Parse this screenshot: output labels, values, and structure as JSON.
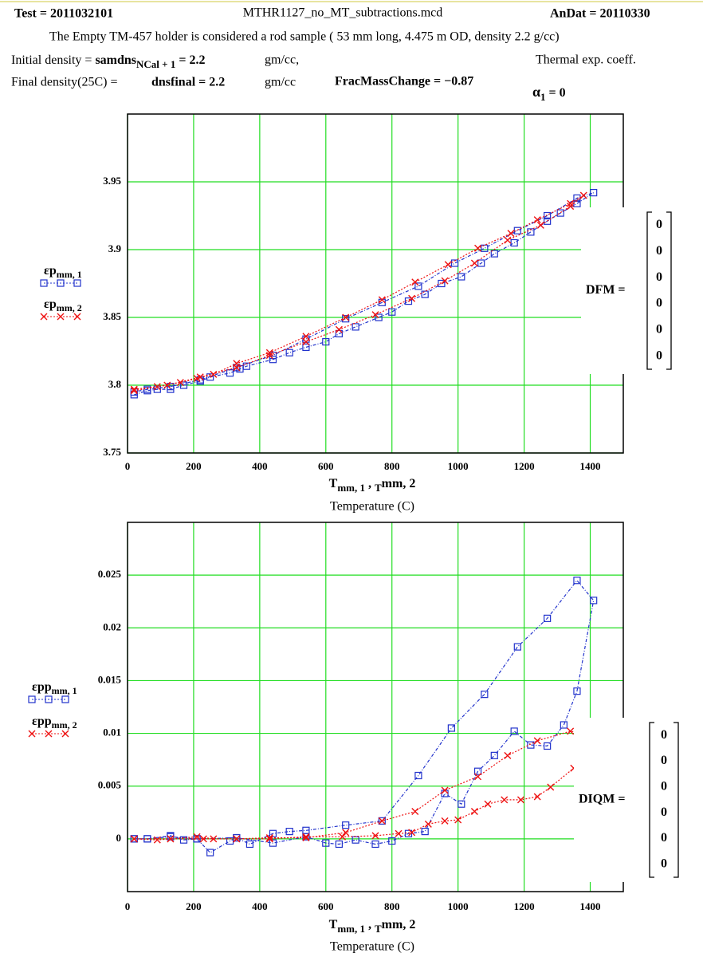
{
  "header": {
    "test": "Test = 2011032101",
    "file": "MTHR1127_no_MT_subtractions.mcd",
    "andat": "AnDat = 20110330",
    "description": "The Empty TM-457 holder is considered a rod sample ( 53 mm long, 4.475 m OD, density 2.2 g/cc)",
    "initial_label": "Initial density = ",
    "initial_var": "samdns",
    "initial_sub": "NCal + 1",
    "initial_value": " = 2.2",
    "initial_unit": "gm/cc,",
    "thermal": "Thermal exp. coeff.",
    "final_label": "Final density(25C) = ",
    "final_expr": "dnsfinal = 2.2",
    "final_unit": "gm/cc",
    "frac": "FracMassChange = −0.87",
    "alpha": "α",
    "alpha_sub": "1",
    "alpha_value": " = 0"
  },
  "chart_data": [
    {
      "type": "line",
      "xlim": [
        0,
        1500
      ],
      "ylim": [
        3.75,
        4.0
      ],
      "xticks": [
        0,
        200,
        400,
        600,
        800,
        1000,
        1200,
        1400
      ],
      "yticks": [
        3.75,
        3.8,
        3.85,
        3.9,
        3.95
      ],
      "grid": true,
      "xlabel_parts": [
        "T",
        "mm, 1",
        " , ",
        "T",
        "mm, 2"
      ],
      "xlabel2": "Temperature (C)",
      "series": [
        {
          "name": "εp",
          "name_sub": "mm, 1",
          "color": "#2233cc",
          "marker": "square",
          "x": [
            20,
            60,
            90,
            130,
            170,
            220,
            250,
            310,
            340,
            360,
            440,
            490,
            540,
            600,
            640,
            690,
            760,
            800,
            850,
            900,
            950,
            1010,
            1070,
            1110,
            1170,
            1220,
            1270,
            1310,
            1360,
            1410,
            1360,
            1270,
            1180,
            1080,
            990,
            880,
            770,
            660,
            540,
            440,
            330,
            220,
            130,
            60,
            20
          ],
          "values": [
            3.793,
            3.796,
            3.797,
            3.797,
            3.8,
            3.803,
            3.806,
            3.809,
            3.812,
            3.814,
            3.819,
            3.824,
            3.828,
            3.832,
            3.838,
            3.843,
            3.85,
            3.854,
            3.862,
            3.867,
            3.875,
            3.88,
            3.89,
            3.897,
            3.905,
            3.913,
            3.921,
            3.927,
            3.934,
            3.942,
            3.938,
            3.925,
            3.914,
            3.901,
            3.89,
            3.873,
            3.861,
            3.849,
            3.834,
            3.822,
            3.813,
            3.804,
            3.799,
            3.797,
            3.795
          ]
        },
        {
          "name": "εp",
          "name_sub": "mm, 2",
          "color": "#ee1111",
          "marker": "x",
          "x": [
            20,
            90,
            160,
            210,
            260,
            330,
            430,
            540,
            660,
            770,
            870,
            970,
            1060,
            1160,
            1240,
            1340,
            1380,
            1340,
            1250,
            1150,
            1050,
            960,
            860,
            750,
            640,
            540,
            430,
            330,
            220,
            120,
            20
          ],
          "values": [
            3.797,
            3.799,
            3.802,
            3.805,
            3.808,
            3.816,
            3.824,
            3.836,
            3.85,
            3.863,
            3.876,
            3.889,
            3.901,
            3.912,
            3.922,
            3.934,
            3.94,
            3.932,
            3.918,
            3.907,
            3.89,
            3.877,
            3.864,
            3.852,
            3.841,
            3.832,
            3.822,
            3.813,
            3.806,
            3.8,
            3.796
          ]
        }
      ]
    },
    {
      "type": "line",
      "xlim": [
        0,
        1500
      ],
      "ylim": [
        -0.005,
        0.03
      ],
      "xticks": [
        0,
        200,
        400,
        600,
        800,
        1000,
        1200,
        1400
      ],
      "yticks": [
        0,
        0.005,
        0.01,
        0.015,
        0.02,
        0.025
      ],
      "grid": true,
      "xlabel_parts": [
        "T",
        "mm, 1",
        " , ",
        "T",
        "mm, 2"
      ],
      "xlabel2": "Temperature (C)",
      "series": [
        {
          "name": "εpp",
          "name_sub": "mm, 1",
          "color": "#2233cc",
          "marker": "square",
          "x": [
            20,
            60,
            130,
            170,
            210,
            250,
            310,
            330,
            370,
            440,
            490,
            540,
            660,
            770,
            880,
            980,
            1080,
            1180,
            1270,
            1360,
            1410,
            1360,
            1320,
            1270,
            1220,
            1170,
            1110,
            1060,
            1010,
            960,
            900,
            850,
            800,
            750,
            690,
            640,
            600,
            540,
            440,
            330,
            210,
            130,
            60,
            20
          ],
          "values": [
            0,
            0,
            0.0003,
            -0.0001,
            0,
            -0.0013,
            -0.0002,
            0.0001,
            -0.0005,
            0.0005,
            0.0007,
            0.0008,
            0.0013,
            0.0017,
            0.006,
            0.0105,
            0.0137,
            0.0182,
            0.0209,
            0.0245,
            0.0226,
            0.014,
            0.0108,
            0.0088,
            0.0089,
            0.0102,
            0.0079,
            0.0064,
            0.0033,
            0.0043,
            0.0007,
            0.0005,
            -0.0002,
            -0.0005,
            -0.0001,
            -0.0005,
            -0.0004,
            0.0002,
            -0.0004,
            0.0001,
            0,
            0.0002,
            0,
            0
          ]
        },
        {
          "name": "εpp",
          "name_sub": "mm, 2",
          "color": "#ee1111",
          "marker": "x",
          "x": [
            20,
            90,
            130,
            210,
            260,
            330,
            430,
            540,
            660,
            770,
            870,
            960,
            1060,
            1150,
            1240,
            1340,
            1390,
            1350,
            1280,
            1240,
            1190,
            1140,
            1090,
            1050,
            1000,
            960,
            910,
            860,
            820,
            750,
            650,
            540,
            430,
            330,
            230,
            130,
            20
          ],
          "values": [
            0,
            -0.0001,
            0,
            0.0002,
            0,
            0,
            0.0001,
            0.0001,
            0.0006,
            0.0017,
            0.0026,
            0.0046,
            0.0059,
            0.0079,
            0.0093,
            0.0102,
            0.0099,
            0.0067,
            0.0049,
            0.004,
            0.0037,
            0.0037,
            0.0033,
            0.0026,
            0.0018,
            0.0017,
            0.0014,
            0.0006,
            0.0005,
            0.0003,
            0.0002,
            0.0002,
            0,
            0,
            0,
            0,
            0
          ]
        }
      ]
    }
  ],
  "matrices": [
    {
      "label": "DFM =",
      "values": [
        0,
        0,
        0,
        0,
        0,
        0
      ]
    },
    {
      "label": "DIQM =",
      "values": [
        0,
        0,
        0,
        0,
        0,
        0
      ]
    }
  ]
}
